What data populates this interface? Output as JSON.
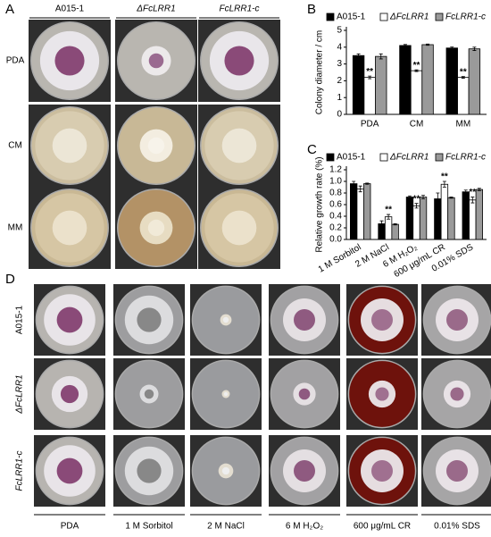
{
  "panel_A": {
    "label": "A",
    "columns": [
      "A015-1",
      "ΔFcLRR1",
      "FcLRR1-c"
    ],
    "rows": [
      "PDA",
      "CM",
      "MM"
    ]
  },
  "chart_data": [
    {
      "type": "bar",
      "panel": "B",
      "y_label": "Colony diameter / cm",
      "categories": [
        "PDA",
        "CM",
        "MM"
      ],
      "ylim": [
        0,
        5
      ],
      "yticks": [
        0,
        1,
        2,
        3,
        4,
        5
      ],
      "grid": false,
      "series": [
        {
          "name": "A015-1",
          "color": "#000000",
          "values": [
            3.5,
            4.1,
            3.95
          ],
          "errors": [
            0.1,
            0.06,
            0.06
          ]
        },
        {
          "name": "ΔFcLRR1",
          "color": "#ffffff",
          "values": [
            2.2,
            2.6,
            2.2
          ],
          "errors": [
            0.08,
            0.05,
            0.05
          ],
          "significance": [
            "**",
            "**",
            "**"
          ]
        },
        {
          "name": "FcLRR1-c",
          "color": "#9a9a9a",
          "values": [
            3.45,
            4.15,
            3.9
          ],
          "errors": [
            0.15,
            0.04,
            0.1
          ]
        }
      ]
    },
    {
      "type": "bar",
      "panel": "C",
      "y_label": "Relative growth rate (%)",
      "categories": [
        "1 M Sorbitol",
        "2 M NaCl",
        "6 M H₂O₂",
        "600 μg/mL CR",
        "0.01% SDS"
      ],
      "ylim": [
        0,
        1.2
      ],
      "yticks": [
        {
          "value": 0,
          "label": "0.0"
        },
        0.2,
        0.4,
        0.6,
        0.8,
        {
          "value": 1,
          "label": "1.0"
        },
        1.2
      ],
      "grid": false,
      "series": [
        {
          "name": "A015-1",
          "color": "#000000",
          "values": [
            0.96,
            0.27,
            0.73,
            0.7,
            0.82
          ],
          "errors": [
            0.04,
            0.05,
            0.02,
            0.1,
            0.03
          ]
        },
        {
          "name": "ΔFcLRR1",
          "color": "#ffffff",
          "values": [
            0.87,
            0.39,
            0.58,
            0.95,
            0.68
          ],
          "errors": [
            0.05,
            0.04,
            0.04,
            0.05,
            0.05
          ],
          "significance": [
            null,
            "**",
            "**",
            "**",
            "**"
          ]
        },
        {
          "name": "FcLRR1-c",
          "color": "#9a9a9a",
          "values": [
            0.96,
            0.26,
            0.73,
            0.72,
            0.86
          ],
          "errors": [
            0.01,
            0.01,
            0.03,
            0.01,
            0.02
          ]
        }
      ]
    }
  ],
  "panel_D": {
    "label": "D",
    "rows": [
      "A015-1",
      "ΔFcLRR1",
      "FcLRR1-c"
    ],
    "columns": [
      "PDA",
      "1 M Sorbitol",
      "2 M NaCl",
      "6 M H₂O₂",
      "600 μg/mL CR",
      "0.01% SDS"
    ]
  }
}
